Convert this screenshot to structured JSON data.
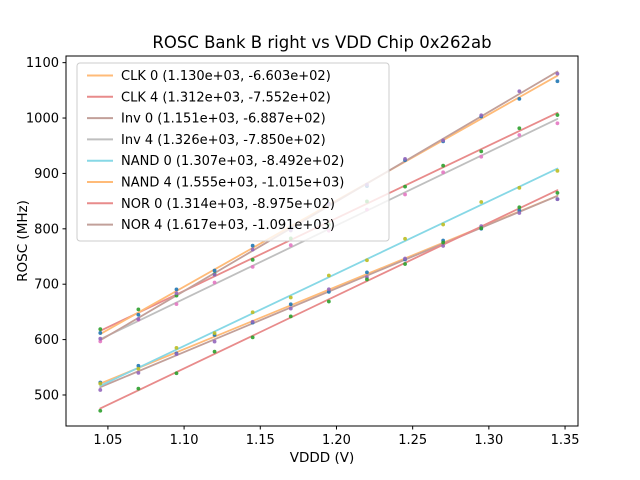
{
  "figure": {
    "background_color": "#ffffff",
    "spine_color": "#000000",
    "legend_border_color": "#cccccc",
    "legend_background": "rgba(255,255,255,0.8)",
    "legend_position": "upper left"
  },
  "chart_data": {
    "type": "scatter",
    "title": "ROSC Bank B right vs VDD Chip 0x262ab",
    "xlabel": "VDDD (V)",
    "ylabel": "ROSC (MHz)",
    "xlim": [
      1.0225,
      1.3585
    ],
    "ylim": [
      444,
      1112
    ],
    "grid": false,
    "xticks": [
      1.05,
      1.1,
      1.15,
      1.2,
      1.25,
      1.3,
      1.35
    ],
    "xtick_labels": [
      "1.05",
      "1.10",
      "1.15",
      "1.20",
      "1.25",
      "1.30",
      "1.35"
    ],
    "yticks": [
      500,
      600,
      700,
      800,
      900,
      1000,
      1100
    ],
    "ytick_labels": [
      "500",
      "600",
      "700",
      "800",
      "900",
      "1000",
      "1100"
    ],
    "x": [
      1.045,
      1.07,
      1.095,
      1.12,
      1.145,
      1.17,
      1.195,
      1.22,
      1.245,
      1.27,
      1.295,
      1.32,
      1.345
    ],
    "series": [
      {
        "name": "CLK 0",
        "legend_label": "CLK 0 (1.130e+03, -6.603e+02)",
        "slope": 1130.0,
        "intercept": -660.3,
        "line_color": "#ffbb78",
        "marker_color": "#1f77b4",
        "y": [
          522.6,
          552.8,
          575.1,
          608.3,
          630.6,
          663.8,
          686.1,
          721.3,
          744.6,
          778.8,
          800.1,
          833.3,
          853.6
        ]
      },
      {
        "name": "CLK 4",
        "legend_label": "CLK 4 (1.312e+03, -7.552e+02)",
        "slope": 1312.0,
        "intercept": -755.2,
        "line_color": "#e88b8b",
        "marker_color": "#2ca02c",
        "y": [
          618.8,
          654.6,
          679.4,
          718.2,
          744.0,
          782.8,
          807.6,
          849.4,
          876.2,
          914.0,
          939.8,
          981.6,
          1005.4
        ]
      },
      {
        "name": "Inv 0",
        "legend_label": "Inv 0 (1.151e+03, -6.887e+02)",
        "slope": 1151.0,
        "intercept": -688.7,
        "line_color": "#c2a09a",
        "marker_color": "#9467bd",
        "y": [
          509.1,
          539.9,
          573.7,
          596.4,
          632.2,
          656.0,
          690.8,
          712.5,
          746.3,
          769.1,
          804.9,
          828.6,
          853.4
        ]
      },
      {
        "name": "Inv 4",
        "legend_label": "Inv 4 (1.326e+03, -7.850e+02)",
        "slope": 1326.0,
        "intercept": -785.0,
        "line_color": "#bfbfbf",
        "marker_color": "#e377c2",
        "y": [
          596.7,
          635.8,
          664.0,
          703.1,
          731.3,
          770.4,
          796.6,
          834.7,
          861.9,
          902.0,
          930.2,
          969.3,
          990.5
        ]
      },
      {
        "name": "NAND 0",
        "legend_label": "NAND 0 (1.307e+03, -8.492e+02)",
        "slope": 1307.0,
        "intercept": -849.2,
        "line_color": "#87d8e6",
        "marker_color": "#bcbd22",
        "y": [
          520.6,
          547.3,
          585.0,
          611.6,
          649.3,
          676.0,
          715.7,
          743.3,
          782.0,
          807.7,
          848.4,
          874.0,
          904.7
        ]
      },
      {
        "name": "NAND 4",
        "legend_label": "NAND 4 (1.555e+03, -1.015e+03)",
        "slope": 1555.0,
        "intercept": -1015.0,
        "line_color": "#ffbb78",
        "marker_color": "#1f77b4",
        "y": [
          612.0,
          644.9,
          690.7,
          724.6,
          769.5,
          801.4,
          845.2,
          877.1,
          924.0,
          957.9,
          1002.7,
          1034.6,
          1066.5
        ]
      },
      {
        "name": "NOR 0",
        "legend_label": "NOR 0 (1.314e+03, -8.975e+02)",
        "slope": 1314.0,
        "intercept": -897.5,
        "line_color": "#e88b8b",
        "marker_color": "#2ca02c",
        "y": [
          471.6,
          511.5,
          539.3,
          578.2,
          604.0,
          641.9,
          668.7,
          708.6,
          736.4,
          775.3,
          801.1,
          839.0,
          864.8
        ]
      },
      {
        "name": "NOR 4",
        "legend_label": "NOR 4 (1.617e+03, -1.091e+03)",
        "slope": 1617.0,
        "intercept": -1091.0,
        "line_color": "#c2a09a",
        "marker_color": "#9467bd",
        "y": [
          601.8,
          637.2,
          683.6,
          717.0,
          762.5,
          796.9,
          844.3,
          879.7,
          926.2,
          959.6,
          1005.0,
          1048.4,
          1079.9
        ]
      }
    ]
  }
}
